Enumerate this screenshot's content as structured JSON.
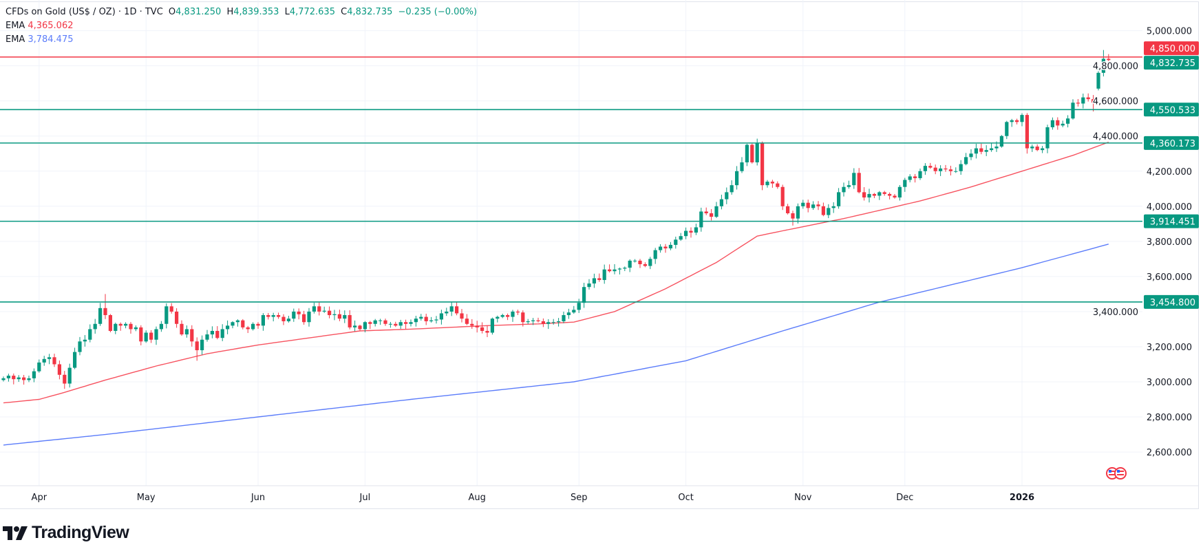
{
  "header": {
    "symbol": "CFDs on Gold (US$ / OZ) · 1D · TVC",
    "open_label": "O",
    "open": "4,831.250",
    "high_label": "H",
    "high": "4,839.353",
    "low_label": "L",
    "low": "4,772.635",
    "close_label": "C",
    "close": "4,832.735",
    "change": "−0.235 (−0.00%)",
    "ema1_label": "EMA",
    "ema1_value": "4,365.062",
    "ema2_label": "EMA",
    "ema2_value": "3,784.475"
  },
  "brand": {
    "name": "TradingView"
  },
  "colors": {
    "up": "#089981",
    "down": "#f23645",
    "ema_fast": "#f7525f",
    "ema_slow": "#5b7cfa",
    "level": "#089981",
    "resistance": "#f23645",
    "grid": "#f0f3fa"
  },
  "chart_data": {
    "type": "candlestick",
    "title": "CFDs on Gold (US$ / OZ) · 1D · TVC",
    "ylim": [
      2450,
      5080
    ],
    "grid": true,
    "y_ticks": [
      5000,
      4800,
      4600,
      4400,
      4200,
      4000,
      3800,
      3600,
      3400,
      3200,
      3000,
      2800,
      2600
    ],
    "y_tick_labels": [
      "5,000.000",
      "4,800.000",
      "4,600.000",
      "4,400.000",
      "4,200.000",
      "4,000.000",
      "3,800.000",
      "3,600.000",
      "3,400.000",
      "3,200.000",
      "3,000.000",
      "2,800.000",
      "2,600.000"
    ],
    "x_tick_labels": [
      "Apr",
      "May",
      "Jun",
      "Jul",
      "Aug",
      "Sep",
      "Oct",
      "Nov",
      "Dec",
      "2026"
    ],
    "closes": [
      3020,
      3035,
      3015,
      3025,
      3010,
      3020,
      3060,
      3110,
      3130,
      3140,
      3100,
      3040,
      2990,
      3080,
      3170,
      3230,
      3240,
      3300,
      3330,
      3420,
      3380,
      3290,
      3330,
      3320,
      3330,
      3300,
      3310,
      3230,
      3280,
      3240,
      3300,
      3330,
      3430,
      3400,
      3330,
      3270,
      3300,
      3230,
      3180,
      3240,
      3270,
      3290,
      3250,
      3300,
      3320,
      3340,
      3350,
      3310,
      3300,
      3330,
      3320,
      3380,
      3370,
      3380,
      3370,
      3345,
      3360,
      3400,
      3385,
      3340,
      3400,
      3430,
      3400,
      3405,
      3380,
      3385,
      3360,
      3380,
      3310,
      3320,
      3300,
      3340,
      3330,
      3350,
      3350,
      3330,
      3330,
      3320,
      3340,
      3330,
      3340,
      3360,
      3370,
      3345,
      3350,
      3355,
      3390,
      3400,
      3430,
      3390,
      3360,
      3330,
      3320,
      3310,
      3290,
      3280,
      3360,
      3370,
      3380,
      3370,
      3400,
      3395,
      3340,
      3345,
      3350,
      3345,
      3330,
      3340,
      3340,
      3345,
      3380,
      3395,
      3410,
      3450,
      3540,
      3560,
      3590,
      3580,
      3640,
      3630,
      3640,
      3645,
      3650,
      3690,
      3690,
      3670,
      3660,
      3700,
      3750,
      3770,
      3760,
      3780,
      3810,
      3830,
      3860,
      3850,
      3880,
      3970,
      3960,
      3940,
      4000,
      4040,
      4080,
      4120,
      4200,
      4250,
      4350,
      4250,
      4360,
      4120,
      4140,
      4130,
      4110,
      4000,
      3960,
      3930,
      4000,
      4020,
      3990,
      4010,
      4000,
      3950,
      3990,
      4000,
      4080,
      4110,
      4120,
      4190,
      4080,
      4050,
      4070,
      4060,
      4080,
      4070,
      4060,
      4050,
      4110,
      4150,
      4170,
      4160,
      4200,
      4230,
      4220,
      4200,
      4215,
      4210,
      4200,
      4200,
      4240,
      4280,
      4300,
      4330,
      4310,
      4320,
      4330,
      4340,
      4400,
      4480,
      4490,
      4480,
      4520,
      4330,
      4340,
      4320,
      4330,
      4450,
      4490,
      4460,
      4470,
      4500,
      4590,
      4585,
      4620,
      4610,
      4590,
      4760,
      4840,
      4832.735
    ],
    "ema_fast": {
      "label": "EMA",
      "last": 4365.062,
      "points": [
        [
          0,
          2880
        ],
        [
          7,
          2900
        ],
        [
          12,
          2940
        ],
        [
          20,
          3010
        ],
        [
          30,
          3090
        ],
        [
          40,
          3160
        ],
        [
          50,
          3210
        ],
        [
          60,
          3250
        ],
        [
          70,
          3290
        ],
        [
          80,
          3300
        ],
        [
          95,
          3320
        ],
        [
          105,
          3330
        ],
        [
          112,
          3340
        ],
        [
          120,
          3400
        ],
        [
          130,
          3530
        ],
        [
          140,
          3680
        ],
        [
          148,
          3830
        ],
        [
          153,
          3860
        ],
        [
          165,
          3930
        ],
        [
          180,
          4030
        ],
        [
          190,
          4110
        ],
        [
          200,
          4200
        ],
        [
          210,
          4290
        ],
        [
          217,
          4365.062
        ]
      ]
    },
    "ema_slow": {
      "label": "EMA",
      "last": 3784.475,
      "points": [
        [
          0,
          2640
        ],
        [
          20,
          2700
        ],
        [
          50,
          2800
        ],
        [
          80,
          2900
        ],
        [
          112,
          3000
        ],
        [
          134,
          3120
        ],
        [
          153,
          3290
        ],
        [
          172,
          3454
        ],
        [
          200,
          3650
        ],
        [
          217,
          3784.475
        ]
      ]
    },
    "levels": [
      {
        "value": 4850.0,
        "label": "4,850.000",
        "kind": "resistance"
      },
      {
        "value": 4550.533,
        "label": "4,550.533",
        "kind": "support"
      },
      {
        "value": 4360.173,
        "label": "4,360.173",
        "kind": "support"
      },
      {
        "value": 3914.451,
        "label": "3,914.451",
        "kind": "support"
      },
      {
        "value": 3454.8,
        "label": "3,454.800",
        "kind": "support"
      }
    ],
    "last_price": {
      "value": 4832.735,
      "label": "4,832.735"
    }
  }
}
